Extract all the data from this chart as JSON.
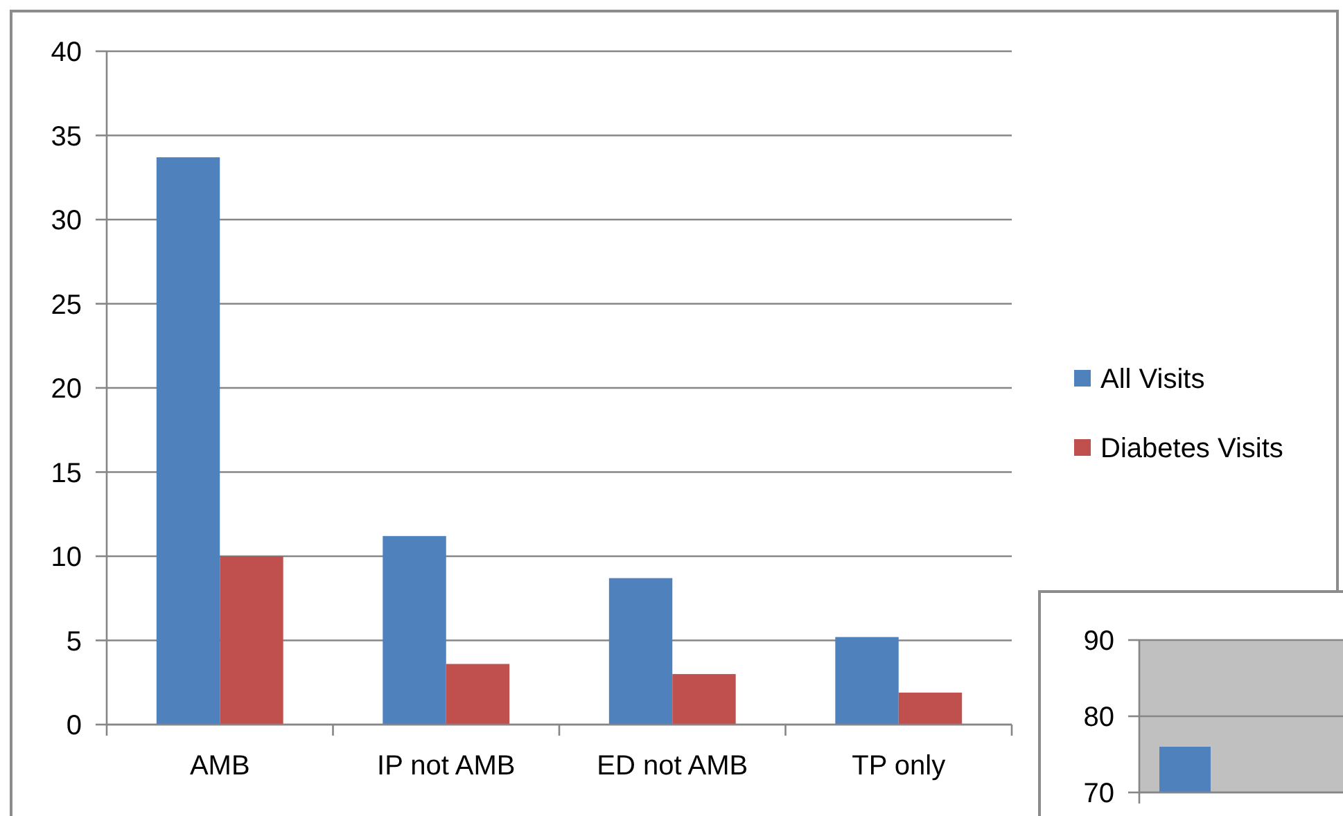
{
  "chart_data": [
    {
      "type": "bar",
      "categories": [
        "AMB",
        "IP not AMB",
        "ED not AMB",
        "TP only"
      ],
      "series": [
        {
          "name": "All Visits",
          "color": "#4f81bd",
          "values": [
            33.7,
            11.2,
            8.7,
            5.2
          ]
        },
        {
          "name": "Diabetes Visits",
          "color": "#c0504d",
          "values": [
            10,
            3.6,
            3.0,
            1.9
          ]
        }
      ],
      "ylim": [
        0,
        40
      ],
      "yticks": [
        0,
        5,
        10,
        15,
        20,
        25,
        30,
        35,
        40
      ],
      "grid": "y",
      "legend": "right"
    },
    {
      "type": "bar",
      "categories": [
        null
      ],
      "series": [
        {
          "color": "#4f81bd",
          "values": [
            76
          ]
        }
      ],
      "ylim": [
        70,
        90
      ],
      "yticks": [
        70,
        80,
        90
      ],
      "grid": "y",
      "tick_labels": "y"
    }
  ]
}
